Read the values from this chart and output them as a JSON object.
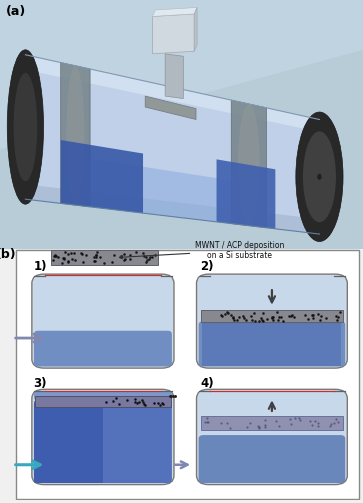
{
  "fig_width": 3.63,
  "fig_height": 5.03,
  "dpi": 100,
  "label_a": "(a)",
  "label_b": "(b)",
  "annotation_text": "MWNT / ACP deposition\non a Si substrate",
  "panel_a_bg": "#b8ccd8",
  "panel_b_bg": "#ffffff",
  "water_light": "#c0d4ec",
  "water_mid": "#7090c8",
  "water_dark": "#4a68b8",
  "water_darker": "#3050a0",
  "tube_body": "#c0d0e8",
  "tube_highlight": "#d8e4f0",
  "tube_band": "#808888",
  "tube_cap_dark": "#282828",
  "tube_cap_mid": "#383838",
  "holder_gray": "#a0a8b0",
  "holder_light": "#c8d0d8",
  "container_fill": "#d0d8e4",
  "container_edge": "#787878",
  "substrate_gray": "#909098",
  "deposition_bg": "#a0a0a8",
  "arrow_gray": "#8088b0",
  "arrow_teal": "#38a8c0",
  "arrow_dark": "#404040",
  "red_line": "#cc3333"
}
